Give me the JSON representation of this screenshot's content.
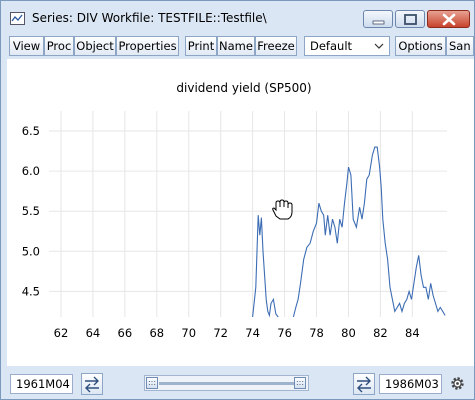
{
  "window": {
    "title": "Series: DIV   Workfile: TESTFILE::Testfile\\"
  },
  "toolbar": {
    "buttons": [
      "View",
      "Proc",
      "Object",
      "Properties",
      "Print",
      "Name",
      "Freeze",
      "Options",
      "San"
    ],
    "dropdown_value": "Default"
  },
  "chart_data": {
    "type": "line",
    "title": "dividend yield (SP500)",
    "xlabel": "",
    "ylabel": "",
    "x_tick_labels": [
      "62",
      "64",
      "66",
      "68",
      "70",
      "72",
      "74",
      "76",
      "78",
      "80",
      "82",
      "84"
    ],
    "y_tick_labels": [
      "4.5",
      "5.0",
      "5.5",
      "6.0",
      "6.5"
    ],
    "ylim": [
      4.18,
      6.75
    ],
    "xlim": [
      1961.25,
      1986.17
    ],
    "grid": true,
    "series": [
      {
        "color": "#3c6db4",
        "x": [
          1974.0,
          1974.2,
          1974.35,
          1974.45,
          1974.55,
          1974.65,
          1974.75,
          1974.85,
          1974.95,
          1975.05,
          1975.15,
          1975.3,
          1975.45,
          1975.6,
          1976.55,
          1976.7,
          1976.85,
          1977.0,
          1977.2,
          1977.4,
          1977.6,
          1977.8,
          1978.0,
          1978.15,
          1978.3,
          1978.45,
          1978.55,
          1978.7,
          1978.85,
          1979.0,
          1979.15,
          1979.3,
          1979.45,
          1979.6,
          1979.75,
          1979.9,
          1980.0,
          1980.15,
          1980.3,
          1980.5,
          1980.7,
          1980.85,
          1981.0,
          1981.15,
          1981.3,
          1981.5,
          1981.65,
          1981.8,
          1981.95,
          1982.05,
          1982.15,
          1982.3,
          1982.45,
          1982.6,
          1982.75,
          1982.9,
          1983.05,
          1983.2,
          1983.35,
          1983.5,
          1983.65,
          1983.8,
          1983.95,
          1984.1,
          1984.25,
          1984.4,
          1984.55,
          1984.7,
          1984.85,
          1985.0,
          1985.15,
          1985.3,
          1985.45,
          1985.6,
          1985.75,
          1985.9,
          1986.05
        ],
        "values": [
          4.18,
          4.55,
          5.45,
          5.2,
          5.42,
          5.0,
          4.7,
          4.4,
          4.25,
          4.2,
          4.35,
          4.4,
          4.22,
          4.18,
          4.18,
          4.3,
          4.4,
          4.6,
          4.9,
          5.05,
          5.1,
          5.25,
          5.35,
          5.6,
          5.5,
          5.45,
          5.2,
          5.45,
          5.2,
          5.4,
          5.3,
          5.1,
          5.4,
          5.3,
          5.6,
          5.85,
          6.05,
          5.95,
          5.4,
          5.3,
          5.55,
          5.4,
          5.6,
          5.9,
          5.95,
          6.2,
          6.3,
          6.3,
          6.05,
          5.8,
          5.4,
          5.1,
          4.9,
          4.55,
          4.4,
          4.25,
          4.3,
          4.35,
          4.25,
          4.35,
          4.4,
          4.5,
          4.4,
          4.6,
          4.8,
          4.95,
          4.7,
          4.55,
          4.55,
          4.4,
          4.6,
          4.45,
          4.35,
          4.25,
          4.3,
          4.25,
          4.2
        ]
      }
    ]
  },
  "statusbar": {
    "start_date": "1961M04",
    "end_date": "1986M03"
  }
}
